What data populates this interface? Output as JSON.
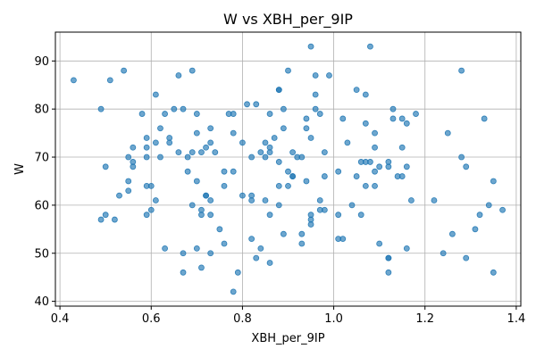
{
  "chart_data": {
    "type": "scatter",
    "title": "W vs XBH_per_9IP",
    "xlabel": "XBH_per_9IP",
    "ylabel": "W",
    "xlim": [
      0.39,
      1.41
    ],
    "ylim": [
      39,
      96
    ],
    "xticks": [
      0.4,
      0.6,
      0.8,
      1.0,
      1.2,
      1.4
    ],
    "xtick_labels": [
      "0.4",
      "0.6",
      "0.8",
      "1.0",
      "1.2",
      "1.4"
    ],
    "yticks": [
      40,
      50,
      60,
      70,
      80,
      90
    ],
    "ytick_labels": [
      "40",
      "50",
      "60",
      "70",
      "80",
      "90"
    ],
    "grid": true,
    "point_color": "#1f77b4",
    "point_opacity": 0.65,
    "series": [
      {
        "points": [
          [
            0.43,
            86
          ],
          [
            0.49,
            80
          ],
          [
            0.5,
            68
          ],
          [
            0.5,
            58
          ],
          [
            0.49,
            57
          ],
          [
            0.52,
            57
          ],
          [
            0.51,
            86
          ],
          [
            0.54,
            88
          ],
          [
            0.53,
            62
          ],
          [
            0.55,
            63
          ],
          [
            0.55,
            65
          ],
          [
            0.55,
            70
          ],
          [
            0.56,
            69
          ],
          [
            0.56,
            68
          ],
          [
            0.56,
            72
          ],
          [
            0.58,
            79
          ],
          [
            0.59,
            74
          ],
          [
            0.59,
            72
          ],
          [
            0.59,
            70
          ],
          [
            0.59,
            64
          ],
          [
            0.6,
            64
          ],
          [
            0.59,
            58
          ],
          [
            0.6,
            59
          ],
          [
            0.61,
            61
          ],
          [
            0.61,
            83
          ],
          [
            0.61,
            73
          ],
          [
            0.62,
            76
          ],
          [
            0.62,
            70
          ],
          [
            0.63,
            79
          ],
          [
            0.63,
            51
          ],
          [
            0.64,
            74
          ],
          [
            0.64,
            73
          ],
          [
            0.65,
            80
          ],
          [
            0.66,
            87
          ],
          [
            0.66,
            71
          ],
          [
            0.67,
            80
          ],
          [
            0.67,
            50
          ],
          [
            0.67,
            46
          ],
          [
            0.68,
            67
          ],
          [
            0.68,
            70
          ],
          [
            0.69,
            60
          ],
          [
            0.69,
            71
          ],
          [
            0.69,
            88
          ],
          [
            0.7,
            79
          ],
          [
            0.7,
            75
          ],
          [
            0.7,
            51
          ],
          [
            0.7,
            65
          ],
          [
            0.71,
            71
          ],
          [
            0.71,
            47
          ],
          [
            0.71,
            58
          ],
          [
            0.71,
            59
          ],
          [
            0.72,
            62
          ],
          [
            0.72,
            62
          ],
          [
            0.72,
            72
          ],
          [
            0.73,
            73
          ],
          [
            0.73,
            76
          ],
          [
            0.73,
            61
          ],
          [
            0.73,
            50
          ],
          [
            0.73,
            58
          ],
          [
            0.74,
            71
          ],
          [
            0.75,
            55
          ],
          [
            0.76,
            52
          ],
          [
            0.76,
            64
          ],
          [
            0.76,
            67
          ],
          [
            0.77,
            79
          ],
          [
            0.78,
            75
          ],
          [
            0.78,
            79
          ],
          [
            0.78,
            67
          ],
          [
            0.78,
            42
          ],
          [
            0.79,
            46
          ],
          [
            0.8,
            62
          ],
          [
            0.8,
            73
          ],
          [
            0.81,
            81
          ],
          [
            0.82,
            70
          ],
          [
            0.82,
            53
          ],
          [
            0.82,
            61
          ],
          [
            0.82,
            62
          ],
          [
            0.83,
            49
          ],
          [
            0.83,
            81
          ],
          [
            0.84,
            71
          ],
          [
            0.84,
            51
          ],
          [
            0.85,
            61
          ],
          [
            0.85,
            73
          ],
          [
            0.85,
            70
          ],
          [
            0.86,
            71
          ],
          [
            0.86,
            72
          ],
          [
            0.86,
            58
          ],
          [
            0.86,
            48
          ],
          [
            0.86,
            79
          ],
          [
            0.87,
            74
          ],
          [
            0.88,
            84
          ],
          [
            0.88,
            84
          ],
          [
            0.88,
            64
          ],
          [
            0.88,
            69
          ],
          [
            0.88,
            60
          ],
          [
            0.89,
            76
          ],
          [
            0.89,
            80
          ],
          [
            0.89,
            54
          ],
          [
            0.9,
            67
          ],
          [
            0.9,
            88
          ],
          [
            0.9,
            64
          ],
          [
            0.91,
            66
          ],
          [
            0.91,
            66
          ],
          [
            0.91,
            71
          ],
          [
            0.92,
            70
          ],
          [
            0.93,
            70
          ],
          [
            0.93,
            52
          ],
          [
            0.93,
            54
          ],
          [
            0.94,
            65
          ],
          [
            0.94,
            78
          ],
          [
            0.94,
            76
          ],
          [
            0.95,
            74
          ],
          [
            0.95,
            58
          ],
          [
            0.95,
            56
          ],
          [
            0.95,
            57
          ],
          [
            0.95,
            93
          ],
          [
            0.96,
            87
          ],
          [
            0.96,
            83
          ],
          [
            0.96,
            80
          ],
          [
            0.97,
            79
          ],
          [
            0.97,
            61
          ],
          [
            0.97,
            59
          ],
          [
            0.98,
            59
          ],
          [
            0.98,
            66
          ],
          [
            0.98,
            71
          ],
          [
            0.99,
            87
          ],
          [
            1.01,
            58
          ],
          [
            1.01,
            53
          ],
          [
            1.01,
            67
          ],
          [
            1.02,
            78
          ],
          [
            1.02,
            53
          ],
          [
            1.03,
            73
          ],
          [
            1.04,
            60
          ],
          [
            1.05,
            84
          ],
          [
            1.05,
            66
          ],
          [
            1.06,
            69
          ],
          [
            1.06,
            58
          ],
          [
            1.07,
            83
          ],
          [
            1.07,
            77
          ],
          [
            1.07,
            69
          ],
          [
            1.07,
            64
          ],
          [
            1.08,
            93
          ],
          [
            1.08,
            69
          ],
          [
            1.09,
            67
          ],
          [
            1.09,
            75
          ],
          [
            1.09,
            72
          ],
          [
            1.09,
            64
          ],
          [
            1.1,
            52
          ],
          [
            1.1,
            68
          ],
          [
            1.12,
            49
          ],
          [
            1.12,
            49
          ],
          [
            1.12,
            46
          ],
          [
            1.12,
            69
          ],
          [
            1.12,
            68
          ],
          [
            1.13,
            78
          ],
          [
            1.13,
            80
          ],
          [
            1.14,
            66
          ],
          [
            1.15,
            78
          ],
          [
            1.15,
            66
          ],
          [
            1.15,
            72
          ],
          [
            1.16,
            77
          ],
          [
            1.16,
            51
          ],
          [
            1.16,
            68
          ],
          [
            1.17,
            61
          ],
          [
            1.18,
            79
          ],
          [
            1.22,
            61
          ],
          [
            1.24,
            50
          ],
          [
            1.25,
            75
          ],
          [
            1.26,
            54
          ],
          [
            1.28,
            70
          ],
          [
            1.28,
            88
          ],
          [
            1.29,
            49
          ],
          [
            1.29,
            68
          ],
          [
            1.31,
            55
          ],
          [
            1.32,
            58
          ],
          [
            1.33,
            78
          ],
          [
            1.34,
            60
          ],
          [
            1.35,
            46
          ],
          [
            1.35,
            65
          ],
          [
            1.37,
            59
          ]
        ]
      }
    ]
  }
}
